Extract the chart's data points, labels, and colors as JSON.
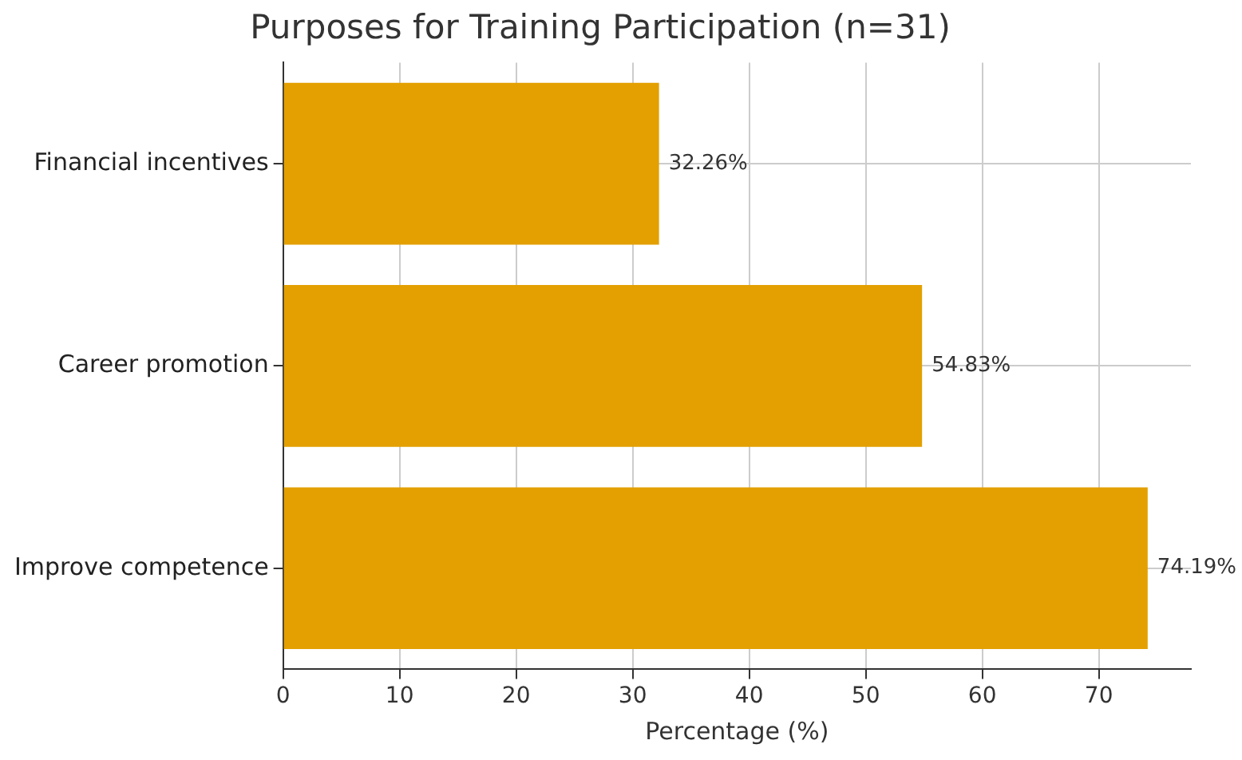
{
  "chart_data": {
    "type": "bar",
    "orientation": "horizontal",
    "title": "Purposes for Training Participation (n=31)",
    "xlabel": "Percentage (%)",
    "categories": [
      "Financial incentives",
      "Career promotion",
      "Improve competence"
    ],
    "values": [
      32.26,
      54.83,
      74.19
    ],
    "color": "#e3a000",
    "value_labels": [
      "32.26%",
      "54.83%",
      "74.19%"
    ],
    "xlim": [
      0,
      77.9
    ],
    "xticks": [
      0,
      10,
      20,
      30,
      40,
      50,
      60,
      70
    ],
    "grid": true
  }
}
